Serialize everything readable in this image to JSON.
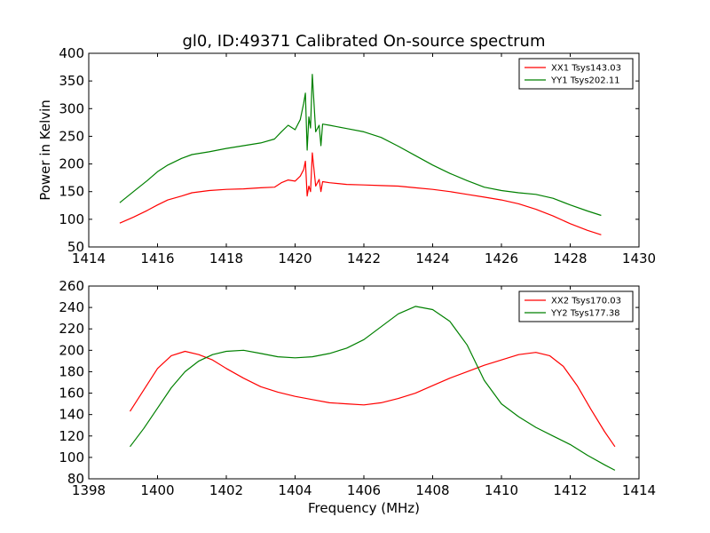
{
  "figure": {
    "title": "gl0, ID:49371 Calibrated On-source spectrum",
    "xlabel": "Frequency (MHz)"
  },
  "colors": {
    "xx": "#ff0000",
    "yy": "#008000"
  },
  "chart_data": [
    {
      "type": "line",
      "title": "gl0, ID:49371 Calibrated On-source spectrum",
      "xlabel": "",
      "ylabel": "Power in Kelvin",
      "xlim": [
        1414,
        1430
      ],
      "ylim": [
        50,
        400
      ],
      "xticks": [
        1414,
        1416,
        1418,
        1420,
        1422,
        1424,
        1426,
        1428,
        1430
      ],
      "yticks": [
        50,
        100,
        150,
        200,
        250,
        300,
        350,
        400
      ],
      "legend_position": "top-right",
      "grid": false,
      "series": [
        {
          "name": "XX1 Tsys143.03",
          "color": "#ff0000",
          "x": [
            1414.9,
            1415.3,
            1415.7,
            1416.0,
            1416.3,
            1416.7,
            1417.0,
            1417.5,
            1418.0,
            1418.5,
            1419.0,
            1419.4,
            1419.6,
            1419.8,
            1420.0,
            1420.15,
            1420.25,
            1420.3,
            1420.35,
            1420.4,
            1420.45,
            1420.5,
            1420.55,
            1420.6,
            1420.7,
            1420.75,
            1420.8,
            1421.0,
            1421.5,
            1422.0,
            1422.5,
            1423.0,
            1423.5,
            1424.0,
            1424.5,
            1425.0,
            1425.5,
            1426.0,
            1426.5,
            1427.0,
            1427.5,
            1428.0,
            1428.5,
            1428.9
          ],
          "y": [
            93,
            104,
            116,
            126,
            135,
            142,
            148,
            152,
            154,
            155,
            157,
            158,
            166,
            171,
            169,
            178,
            190,
            205,
            142,
            160,
            150,
            220,
            190,
            160,
            172,
            150,
            168,
            166,
            163,
            162,
            161,
            160,
            157,
            154,
            150,
            145,
            140,
            135,
            128,
            118,
            106,
            92,
            80,
            72
          ]
        },
        {
          "name": "YY1 Tsys202.11",
          "color": "#008000",
          "x": [
            1414.9,
            1415.3,
            1415.7,
            1416.0,
            1416.3,
            1416.7,
            1417.0,
            1417.5,
            1418.0,
            1418.5,
            1419.0,
            1419.4,
            1419.6,
            1419.8,
            1420.0,
            1420.15,
            1420.25,
            1420.3,
            1420.35,
            1420.4,
            1420.45,
            1420.5,
            1420.55,
            1420.6,
            1420.7,
            1420.75,
            1420.8,
            1421.0,
            1421.5,
            1422.0,
            1422.5,
            1423.0,
            1423.5,
            1424.0,
            1424.5,
            1425.0,
            1425.5,
            1426.0,
            1426.5,
            1427.0,
            1427.5,
            1428.0,
            1428.5,
            1428.9
          ],
          "y": [
            130,
            150,
            170,
            186,
            198,
            210,
            217,
            222,
            228,
            233,
            238,
            245,
            258,
            270,
            262,
            280,
            310,
            328,
            225,
            285,
            265,
            362,
            310,
            258,
            270,
            233,
            272,
            270,
            264,
            258,
            248,
            232,
            215,
            198,
            183,
            170,
            158,
            152,
            148,
            145,
            138,
            126,
            115,
            107
          ]
        }
      ]
    },
    {
      "type": "line",
      "title": "",
      "xlabel": "Frequency (MHz)",
      "ylabel": "",
      "xlim": [
        1398,
        1414
      ],
      "ylim": [
        80,
        260
      ],
      "xticks": [
        1398,
        1400,
        1402,
        1404,
        1406,
        1408,
        1410,
        1412,
        1414
      ],
      "yticks": [
        80,
        100,
        120,
        140,
        160,
        180,
        200,
        220,
        240,
        260
      ],
      "legend_position": "top-right",
      "grid": false,
      "series": [
        {
          "name": "XX2 Tsys170.03",
          "color": "#ff0000",
          "x": [
            1399.2,
            1399.6,
            1400.0,
            1400.4,
            1400.8,
            1401.2,
            1401.6,
            1402.0,
            1402.5,
            1403.0,
            1403.5,
            1404.0,
            1404.5,
            1405.0,
            1405.5,
            1406.0,
            1406.5,
            1407.0,
            1407.5,
            1408.0,
            1408.5,
            1409.0,
            1409.5,
            1410.0,
            1410.5,
            1411.0,
            1411.4,
            1411.8,
            1412.2,
            1412.6,
            1413.0,
            1413.3
          ],
          "y": [
            143,
            163,
            183,
            195,
            199,
            196,
            191,
            183,
            174,
            166,
            161,
            157,
            154,
            151,
            150,
            149,
            151,
            155,
            160,
            167,
            174,
            180,
            186,
            191,
            196,
            198,
            195,
            185,
            167,
            145,
            124,
            110
          ]
        },
        {
          "name": "YY2 Tsys177.38",
          "color": "#008000",
          "x": [
            1399.2,
            1399.6,
            1400.0,
            1400.4,
            1400.8,
            1401.2,
            1401.6,
            1402.0,
            1402.5,
            1403.0,
            1403.5,
            1404.0,
            1404.5,
            1405.0,
            1405.5,
            1406.0,
            1406.5,
            1407.0,
            1407.5,
            1408.0,
            1408.5,
            1409.0,
            1409.5,
            1410.0,
            1410.5,
            1411.0,
            1411.5,
            1412.0,
            1412.5,
            1413.0,
            1413.3
          ],
          "y": [
            110,
            127,
            146,
            165,
            180,
            190,
            196,
            199,
            200,
            197,
            194,
            193,
            194,
            197,
            202,
            210,
            222,
            234,
            241,
            238,
            227,
            205,
            172,
            150,
            138,
            128,
            120,
            112,
            102,
            93,
            88
          ]
        }
      ]
    }
  ]
}
